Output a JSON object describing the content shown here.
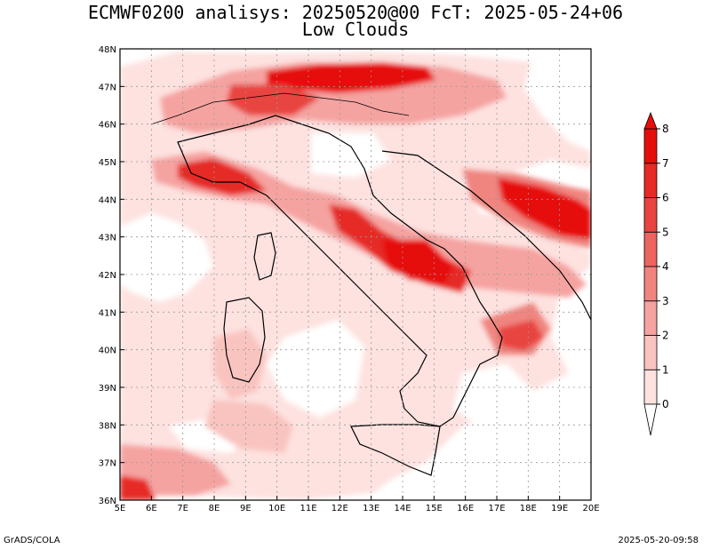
{
  "header": {
    "title_line1": "ECMWF0200 analisys: 20250520@00 FcT: 2025-05-24+06",
    "title_line2": "Low Clouds"
  },
  "map": {
    "lon_labels": [
      "5E",
      "6E",
      "7E",
      "8E",
      "9E",
      "10E",
      "11E",
      "12E",
      "13E",
      "14E",
      "15E",
      "16E",
      "17E",
      "18E",
      "19E",
      "20E"
    ],
    "lat_labels": [
      "36N",
      "37N",
      "38N",
      "39N",
      "40N",
      "41N",
      "42N",
      "43N",
      "44N",
      "45N",
      "46N",
      "47N",
      "48N"
    ],
    "lon_range": [
      5,
      20
    ],
    "lat_range": [
      36,
      48
    ],
    "gridlines": "dotted",
    "field": "low cloud cover (oktas)"
  },
  "colorbar": {
    "levels": [
      "0",
      "1",
      "2",
      "3",
      "4",
      "5",
      "6",
      "7",
      "8"
    ],
    "colors": [
      "#ffffff",
      "#fde2e0",
      "#f9c4c0",
      "#f5a3a0",
      "#f08580",
      "#ec6560",
      "#e84540",
      "#e62a25",
      "#e60e0a"
    ],
    "placement": "right",
    "extend": "both"
  },
  "footer": {
    "left": "GrADS/COLA",
    "right": "2025-05-20-09:58"
  }
}
